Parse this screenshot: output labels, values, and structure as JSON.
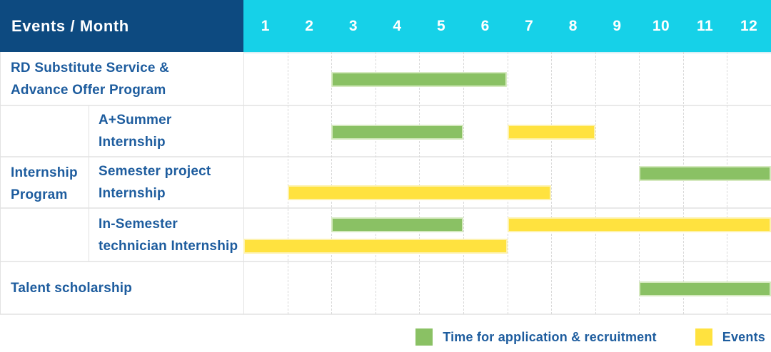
{
  "header": {
    "label": "Events / Month",
    "months": [
      "1",
      "2",
      "3",
      "4",
      "5",
      "6",
      "7",
      "8",
      "9",
      "10",
      "11",
      "12"
    ]
  },
  "row_labels": {
    "rd": [
      "RD Substitute Service &",
      "Advance Offer Program"
    ],
    "group": [
      "Internship",
      "Program"
    ],
    "summer": [
      "A+Summer",
      "Internship"
    ],
    "semester": [
      "Semester project",
      "Internship"
    ],
    "insem": [
      "In-Semester",
      "technician Internship"
    ],
    "talent": [
      "Talent scholarship"
    ]
  },
  "legend": {
    "items": [
      {
        "label": "Time for application & recruitment",
        "series": "green"
      },
      {
        "label": "Events",
        "series": "yellow"
      }
    ]
  },
  "colors": {
    "header_bg": "#0d4a80",
    "months_bg": "#16d1e8",
    "label_text": "#1d5c9e",
    "green": "#8ac164",
    "green_border": "#d5e9bf",
    "yellow": "#ffe23f",
    "yellow_border": "#fdf2ae"
  },
  "chart_data": {
    "type": "bar",
    "variant": "gantt",
    "title": "Events / Month",
    "x_categories": [
      1,
      2,
      3,
      4,
      5,
      6,
      7,
      8,
      9,
      10,
      11,
      12
    ],
    "xlim": [
      1,
      12
    ],
    "grid": true,
    "legend_position": "bottom-right",
    "series_legend": [
      {
        "name": "Time for application & recruitment",
        "color": "#8ac164"
      },
      {
        "name": "Events",
        "color": "#ffe23f"
      }
    ],
    "rows": [
      {
        "group": null,
        "label": "RD Substitute Service & Advance Offer Program",
        "bars": [
          {
            "series": "Time for application & recruitment",
            "color": "green",
            "start_month": 3,
            "end_month": 6,
            "lane": "center"
          }
        ]
      },
      {
        "group": "Internship Program",
        "label": "A+Summer Internship",
        "bars": [
          {
            "series": "Time for application & recruitment",
            "color": "green",
            "start_month": 3,
            "end_month": 5,
            "lane": "center"
          },
          {
            "series": "Events",
            "color": "yellow",
            "start_month": 7,
            "end_month": 8,
            "lane": "center"
          }
        ]
      },
      {
        "group": "Internship Program",
        "label": "Semester project Internship",
        "bars": [
          {
            "series": "Time for application & recruitment",
            "color": "green",
            "start_month": 10,
            "end_month": 12,
            "lane": "upper"
          },
          {
            "series": "Events",
            "color": "yellow",
            "start_month": 2,
            "end_month": 7,
            "lane": "lower"
          }
        ]
      },
      {
        "group": "Internship Program",
        "label": "In-Semester technician Internship",
        "bars": [
          {
            "series": "Time for application & recruitment",
            "color": "green",
            "start_month": 3,
            "end_month": 5,
            "lane": "upper"
          },
          {
            "series": "Events",
            "color": "yellow",
            "start_month": 7,
            "end_month": 12,
            "lane": "upper"
          },
          {
            "series": "Events",
            "color": "yellow",
            "start_month": 1,
            "end_month": 6,
            "lane": "lower"
          }
        ]
      },
      {
        "group": null,
        "label": "Talent scholarship",
        "bars": [
          {
            "series": "Time for application & recruitment",
            "color": "green",
            "start_month": 10,
            "end_month": 12,
            "lane": "center"
          }
        ]
      }
    ]
  }
}
